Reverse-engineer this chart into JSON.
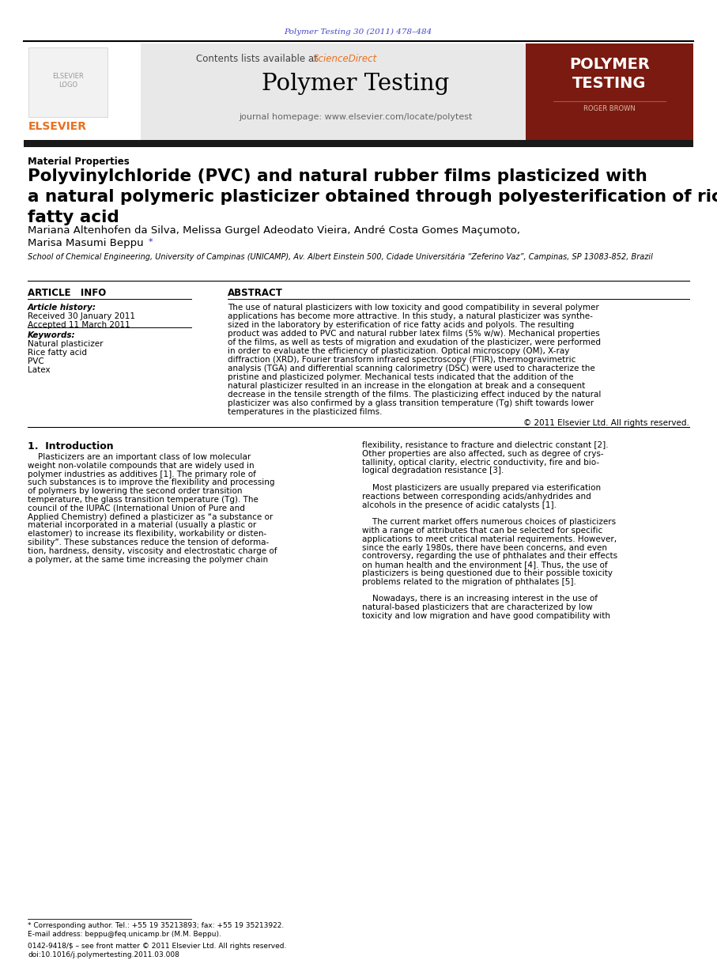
{
  "journal_ref": "Polymer Testing 30 (2011) 478–484",
  "journal_ref_color": "#4444cc",
  "contents_line": "Contents lists available at ",
  "science_direct": "ScienceDirect",
  "science_direct_color": "#ff6600",
  "journal_name": "Polymer Testing",
  "journal_homepage": "journal homepage: www.elsevier.com/locate/polytest",
  "sidebar_title_line1": "POLYMER",
  "sidebar_title_line2": "TESTING",
  "sidebar_author": "ROGER BROWN",
  "sidebar_bg": "#7a1a10",
  "header_bg": "#e8e8e8",
  "section_label": "Material Properties",
  "article_title_line1": "Polyvinylchloride (PVC) and natural rubber films plasticized with",
  "article_title_line2": "a natural polymeric plasticizer obtained through polyesterification of rice",
  "article_title_line3": "fatty acid",
  "authors_line1": "Mariana Altenhofen da Silva, Melissa Gurgel Adeodato Vieira, André Costa Gomes Maçumoto,",
  "authors_line2": "Marisa Masumi Beppu",
  "authors_star": "*",
  "affiliation": "School of Chemical Engineering, University of Campinas (UNICAMP), Av. Albert Einstein 500, Cidade Universitária “Zeferino Vaz”, Campinas, SP 13083-852, Brazil",
  "article_info_header": "ARTICLE   INFO",
  "abstract_header": "ABSTRACT",
  "article_history_label": "Article history:",
  "received": "Received 30 January 2011",
  "accepted": "Accepted 11 March 2011",
  "keywords_label": "Keywords:",
  "keywords": [
    "Natural plasticizer",
    "Rice fatty acid",
    "PVC",
    "Latex"
  ],
  "abstract_lines": [
    "The use of natural plasticizers with low toxicity and good compatibility in several polymer",
    "applications has become more attractive. In this study, a natural plasticizer was synthe-",
    "sized in the laboratory by esterification of rice fatty acids and polyols. The resulting",
    "product was added to PVC and natural rubber latex films (5% w/w). Mechanical properties",
    "of the films, as well as tests of migration and exudation of the plasticizer, were performed",
    "in order to evaluate the efficiency of plasticization. Optical microscopy (OM), X-ray",
    "diffraction (XRD), Fourier transform infrared spectroscopy (FTIR), thermogravimetric",
    "analysis (TGA) and differential scanning calorimetry (DSC) were used to characterize the",
    "pristine and plasticized polymer. Mechanical tests indicated that the addition of the",
    "natural plasticizer resulted in an increase in the elongation at break and a consequent",
    "decrease in the tensile strength of the films. The plasticizing effect induced by the natural",
    "plasticizer was also confirmed by a glass transition temperature (Tg) shift towards lower",
    "temperatures in the plasticized films."
  ],
  "copyright": "© 2011 Elsevier Ltd. All rights reserved.",
  "intro_header": "1.  Introduction",
  "intro_col1_lines": [
    "    Plasticizers are an important class of low molecular",
    "weight non-volatile compounds that are widely used in",
    "polymer industries as additives [1]. The primary role of",
    "such substances is to improve the flexibility and processing",
    "of polymers by lowering the second order transition",
    "temperature, the glass transition temperature (Tg). The",
    "council of the IUPAC (International Union of Pure and",
    "Applied Chemistry) defined a plasticizer as “a substance or",
    "material incorporated in a material (usually a plastic or",
    "elastomer) to increase its flexibility, workability or disten-",
    "sibility”. These substances reduce the tension of deforma-",
    "tion, hardness, density, viscosity and electrostatic charge of",
    "a polymer, at the same time increasing the polymer chain"
  ],
  "intro_col2_lines": [
    "flexibility, resistance to fracture and dielectric constant [2].",
    "Other properties are also affected, such as degree of crys-",
    "tallinity, optical clarity, electric conductivity, fire and bio-",
    "logical degradation resistance [3].",
    "",
    "    Most plasticizers are usually prepared via esterification",
    "reactions between corresponding acids/anhydrides and",
    "alcohols in the presence of acidic catalysts [1].",
    "",
    "    The current market offers numerous choices of plasticizers",
    "with a range of attributes that can be selected for specific",
    "applications to meet critical material requirements. However,",
    "since the early 1980s, there have been concerns, and even",
    "controversy, regarding the use of phthalates and their effects",
    "on human health and the environment [4]. Thus, the use of",
    "plasticizers is being questioned due to their possible toxicity",
    "problems related to the migration of phthalates [5].",
    "",
    "    Nowadays, there is an increasing interest in the use of",
    "natural-based plasticizers that are characterized by low",
    "toxicity and low migration and have good compatibility with"
  ],
  "footnote_star": "* Corresponding author. Tel.: +55 19 35213893; fax: +55 19 35213922.",
  "footnote_email": "E-mail address: beppu@feq.unicamp.br (M.M. Beppu).",
  "issn_line": "0142-9418/$ – see front matter © 2011 Elsevier Ltd. All rights reserved.",
  "doi_line": "doi:10.1016/j.polymertesting.2011.03.008",
  "bg_color": "#ffffff",
  "text_color": "#000000",
  "orange_color": "#e87020",
  "black_bar_color": "#1a1a1a"
}
